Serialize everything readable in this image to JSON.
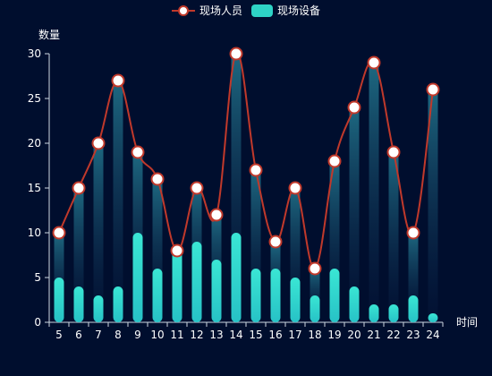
{
  "chart_data": {
    "type": "bar+line",
    "ylabel": "数量",
    "xlabel": "时间",
    "ylim": [
      0,
      30
    ],
    "y_ticks": [
      "0",
      "5",
      "10",
      "15",
      "20",
      "25",
      "30"
    ],
    "categories": [
      "5",
      "6",
      "7",
      "8",
      "9",
      "10",
      "11",
      "12",
      "13",
      "14",
      "15",
      "16",
      "17",
      "18",
      "19",
      "20",
      "21",
      "22",
      "23",
      "24"
    ],
    "series": [
      {
        "name": "现场人员",
        "type": "line",
        "color": "#c0392b",
        "values": [
          10,
          15,
          20,
          27,
          19,
          16,
          8,
          15,
          12,
          30,
          17,
          9,
          15,
          6,
          18,
          24,
          29,
          19,
          10,
          26
        ]
      },
      {
        "name": "现场设备",
        "type": "bar",
        "color": "#2ed3c6",
        "values": [
          5,
          4,
          3,
          4,
          10,
          6,
          8,
          9,
          7,
          10,
          6,
          6,
          5,
          3,
          6,
          4,
          2,
          2,
          3,
          1
        ]
      }
    ],
    "legend_position": "top-center",
    "grid": false
  }
}
